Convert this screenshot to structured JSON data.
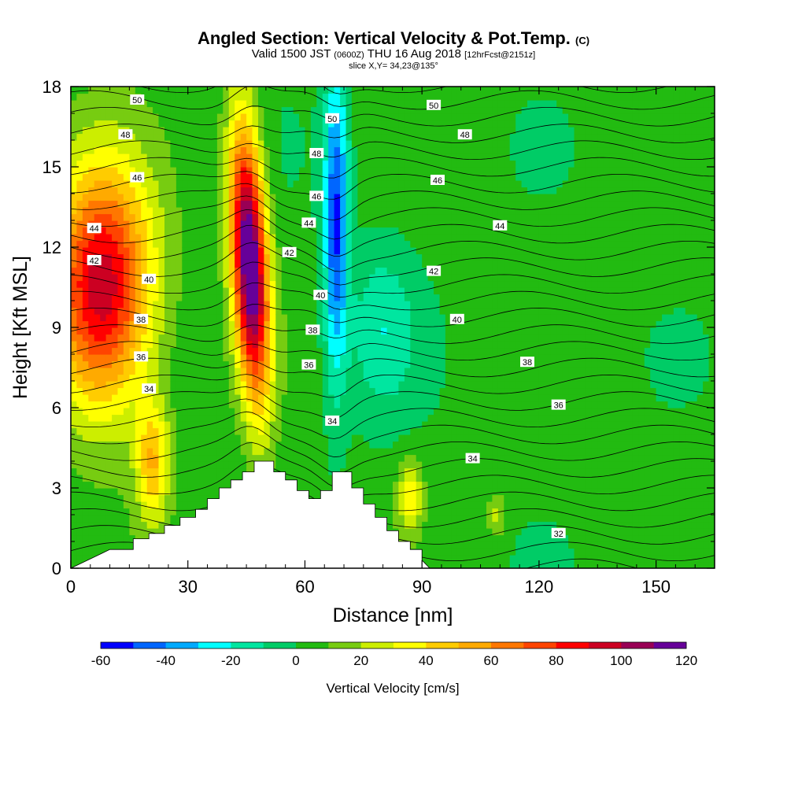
{
  "chart_data": {
    "type": "heatmap",
    "title": "Angled Section: Vertical Velocity & Pot.Temp.",
    "title_unit": "(C)",
    "subtitle_prefix": "Valid 1500 JST",
    "subtitle_utc": "(0600Z)",
    "subtitle_date": "THU 16 Aug 2018",
    "subtitle_fcst": "[12hrFcst@2151z]",
    "slice_label": "slice X,Y= 34,23@135°",
    "xlabel": "Distance [nm]",
    "ylabel": "Height [Kft MSL]",
    "xlim": [
      0,
      165
    ],
    "ylim": [
      0,
      18
    ],
    "x_ticks": [
      "0",
      "30",
      "60",
      "90",
      "120",
      "150"
    ],
    "y_ticks": [
      "0",
      "3",
      "6",
      "9",
      "12",
      "15",
      "18"
    ],
    "colorbar": {
      "label": "Vertical Velocity [cm/s]",
      "min": -60,
      "max": 120,
      "step": 10,
      "tick_labels": [
        "-60",
        "-40",
        "-20",
        "0",
        "20",
        "40",
        "60",
        "80",
        "100",
        "120"
      ],
      "colors": [
        "#0000ff",
        "#0066ff",
        "#00aaff",
        "#00ffff",
        "#00e6a0",
        "#00cc66",
        "#22bb11",
        "#77cc11",
        "#ccee00",
        "#ffff00",
        "#ffcc00",
        "#ffaa00",
        "#ff7700",
        "#ff4400",
        "#ff0000",
        "#cc0022",
        "#990055",
        "#660099"
      ]
    },
    "updrafts": [
      {
        "x": 8,
        "y": 10.5,
        "w": 95,
        "name": "upper-left updraft"
      },
      {
        "x": 46,
        "y": 11.5,
        "w": 125,
        "name": "central updraft"
      },
      {
        "x": 21,
        "y": 4,
        "w": 45,
        "name": "lower updraft"
      },
      {
        "x": 87,
        "y": 2.7,
        "w": 35,
        "name": "lee updraft"
      },
      {
        "x": 109,
        "y": 2,
        "w": 22,
        "name": "small updraft"
      }
    ],
    "downdrafts": [
      {
        "x": 68,
        "y": 13,
        "w": -55,
        "name": "sinking column"
      },
      {
        "x": 80,
        "y": 9,
        "w": -20,
        "name": "broad sinking"
      }
    ],
    "theta_contours": [
      32,
      34,
      36,
      38,
      40,
      42,
      44,
      46,
      48,
      50
    ],
    "theta_labels": [
      {
        "text": "50",
        "x": 17,
        "y": 17.5
      },
      {
        "text": "50",
        "x": 67,
        "y": 16.8
      },
      {
        "text": "50",
        "x": 93,
        "y": 17.3
      },
      {
        "text": "48",
        "x": 14,
        "y": 16.2
      },
      {
        "text": "48",
        "x": 63,
        "y": 15.5
      },
      {
        "text": "48",
        "x": 101,
        "y": 16.2
      },
      {
        "text": "46",
        "x": 17,
        "y": 14.6
      },
      {
        "text": "46",
        "x": 63,
        "y": 13.9
      },
      {
        "text": "46",
        "x": 94,
        "y": 14.5
      },
      {
        "text": "44",
        "x": 6,
        "y": 12.7
      },
      {
        "text": "44",
        "x": 61,
        "y": 12.9
      },
      {
        "text": "44",
        "x": 110,
        "y": 12.8
      },
      {
        "text": "42",
        "x": 6,
        "y": 11.5
      },
      {
        "text": "42",
        "x": 56,
        "y": 11.8
      },
      {
        "text": "42",
        "x": 93,
        "y": 11.1
      },
      {
        "text": "40",
        "x": 20,
        "y": 10.8
      },
      {
        "text": "40",
        "x": 64,
        "y": 10.2
      },
      {
        "text": "40",
        "x": 99,
        "y": 9.3
      },
      {
        "text": "38",
        "x": 18,
        "y": 9.3
      },
      {
        "text": "38",
        "x": 62,
        "y": 8.9
      },
      {
        "text": "38",
        "x": 117,
        "y": 7.7
      },
      {
        "text": "36",
        "x": 18,
        "y": 7.9
      },
      {
        "text": "36",
        "x": 61,
        "y": 7.6
      },
      {
        "text": "36",
        "x": 125,
        "y": 6.1
      },
      {
        "text": "34",
        "x": 20,
        "y": 6.7
      },
      {
        "text": "34",
        "x": 67,
        "y": 5.5
      },
      {
        "text": "34",
        "x": 103,
        "y": 4.1
      },
      {
        "text": "32",
        "x": 125,
        "y": 1.3
      }
    ],
    "terrain": [
      [
        0,
        0
      ],
      [
        10,
        0.7
      ],
      [
        16,
        0.7
      ],
      [
        16,
        1.1
      ],
      [
        20,
        1.1
      ],
      [
        20,
        1.3
      ],
      [
        24,
        1.3
      ],
      [
        24,
        1.6
      ],
      [
        28,
        1.6
      ],
      [
        28,
        1.9
      ],
      [
        32,
        1.9
      ],
      [
        32,
        2.2
      ],
      [
        35,
        2.2
      ],
      [
        35,
        2.6
      ],
      [
        38,
        2.6
      ],
      [
        38,
        3.0
      ],
      [
        41,
        3.0
      ],
      [
        41,
        3.3
      ],
      [
        44,
        3.3
      ],
      [
        44,
        3.6
      ],
      [
        47,
        3.6
      ],
      [
        47,
        4.0
      ],
      [
        52,
        4.0
      ],
      [
        52,
        3.6
      ],
      [
        55,
        3.6
      ],
      [
        55,
        3.3
      ],
      [
        58,
        3.3
      ],
      [
        58,
        2.9
      ],
      [
        61,
        2.9
      ],
      [
        61,
        2.6
      ],
      [
        64,
        2.6
      ],
      [
        64,
        2.9
      ],
      [
        67,
        2.9
      ],
      [
        67,
        3.6
      ],
      [
        72,
        3.6
      ],
      [
        72,
        3.0
      ],
      [
        75,
        3.0
      ],
      [
        75,
        2.4
      ],
      [
        78,
        2.4
      ],
      [
        78,
        1.9
      ],
      [
        81,
        1.9
      ],
      [
        81,
        1.4
      ],
      [
        84,
        1.4
      ],
      [
        84,
        1.0
      ],
      [
        87,
        1.0
      ],
      [
        87,
        0.7
      ],
      [
        90,
        0.7
      ],
      [
        90,
        0.3
      ],
      [
        92,
        0
      ],
      [
        165,
        0
      ]
    ],
    "grid": false
  }
}
